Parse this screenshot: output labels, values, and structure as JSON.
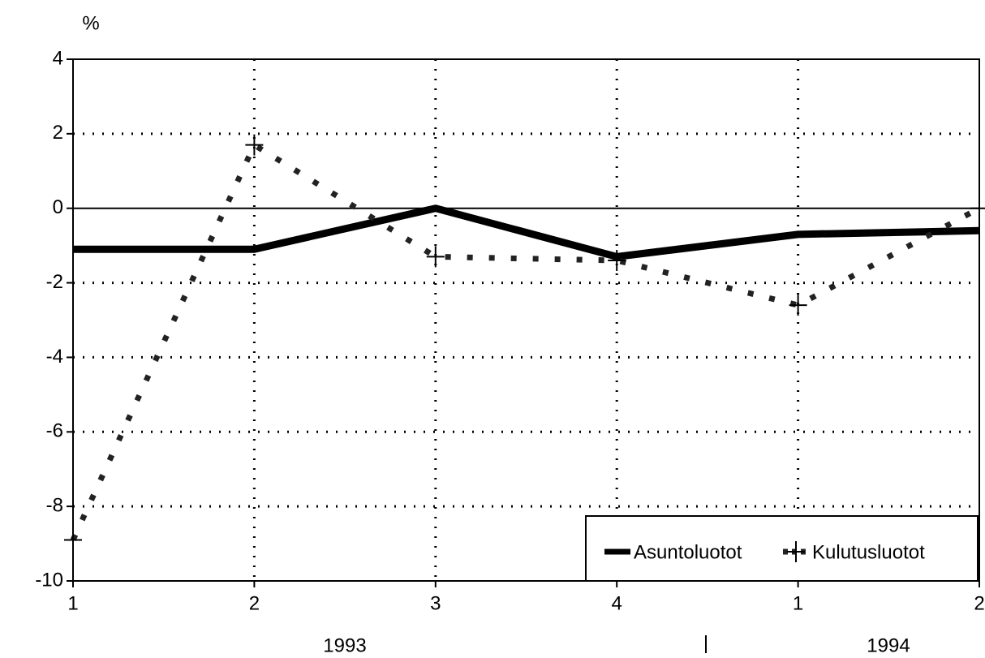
{
  "chart_data": {
    "type": "line",
    "y_label": "%",
    "categories": [
      "1",
      "2",
      "3",
      "4",
      "1",
      "2"
    ],
    "x_groups": [
      "1993",
      "1994"
    ],
    "series": [
      {
        "name": "Asuntoluotot",
        "color": "#000000",
        "style": "solid",
        "values": [
          -1.1,
          -1.1,
          0,
          -1.3,
          -0.7,
          -0.6
        ]
      },
      {
        "name": "Kulutusluotot",
        "color": "#222222",
        "style": "dotted",
        "values": [
          -8.9,
          1.7,
          -1.3,
          -1.4,
          -2.6,
          0
        ]
      }
    ],
    "ylim": [
      -10,
      4
    ],
    "yticks": [
      -10,
      -8,
      -6,
      -4,
      -2,
      0,
      2,
      4
    ],
    "grid": true,
    "legend": "lower right"
  }
}
